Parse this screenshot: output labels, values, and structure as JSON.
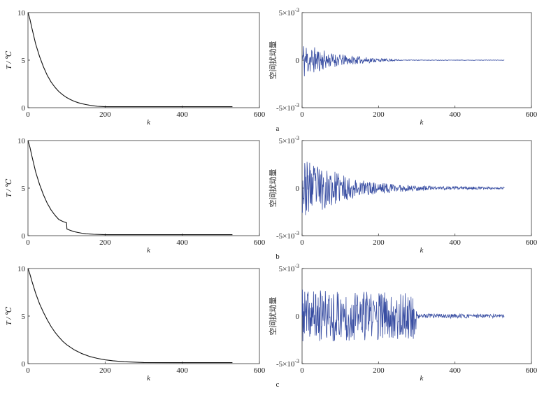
{
  "panel_labels": [
    "a",
    "b",
    "c"
  ],
  "chart_data": [
    {
      "id": "a-left",
      "type": "line",
      "xlabel": "k",
      "ylabel": "T / ℃",
      "xlim": [
        0,
        600
      ],
      "ylim": [
        0,
        10
      ],
      "xticks": [
        "0",
        "200",
        "400",
        "600"
      ],
      "yticks": [
        "0",
        "5",
        "10"
      ],
      "series": [
        {
          "color": "#111111",
          "values": [
            [
              0,
              10
            ],
            [
              5,
              9.3
            ],
            [
              10,
              8.4
            ],
            [
              20,
              6.7
            ],
            [
              30,
              5.4
            ],
            [
              40,
              4.3
            ],
            [
              50,
              3.4
            ],
            [
              60,
              2.7
            ],
            [
              70,
              2.15
            ],
            [
              80,
              1.7
            ],
            [
              90,
              1.35
            ],
            [
              100,
              1.07
            ],
            [
              110,
              0.85
            ],
            [
              120,
              0.67
            ],
            [
              130,
              0.53
            ],
            [
              140,
              0.42
            ],
            [
              150,
              0.33
            ],
            [
              160,
              0.26
            ],
            [
              170,
              0.2
            ],
            [
              180,
              0.15
            ],
            [
              200,
              0.1
            ],
            [
              250,
              0.1
            ],
            [
              300,
              0.1
            ],
            [
              400,
              0.1
            ],
            [
              530,
              0.1
            ]
          ]
        }
      ],
      "grid": false
    },
    {
      "id": "a-right",
      "type": "line",
      "xlabel": "k",
      "ylabel": "空间扰动量",
      "xlim": [
        0,
        600
      ],
      "ylim": [
        -0.005,
        0.005
      ],
      "xticks": [
        "0",
        "200",
        "400",
        "600"
      ],
      "yticks": [
        "-5×10⁻³",
        "0",
        "5×10⁻³"
      ],
      "series": [
        {
          "color": "#3a4fa3",
          "noise": {
            "segments": [
              [
                0,
                20,
                0.0022,
                0.0016
              ],
              [
                20,
                60,
                0.0016,
                0.001
              ],
              [
                60,
                120,
                0.0009,
                0.0005
              ],
              [
                120,
                200,
                0.0005,
                0.0002
              ],
              [
                200,
                260,
                0.0002,
                5e-05
              ],
              [
                260,
                530,
                3e-05,
                2e-05
              ]
            ],
            "seed": 11
          }
        }
      ],
      "grid": false
    },
    {
      "id": "b-left",
      "type": "line",
      "xlabel": "k",
      "ylabel": "T / ℃",
      "xlim": [
        0,
        600
      ],
      "ylim": [
        0,
        10
      ],
      "xticks": [
        "0",
        "200",
        "400",
        "600"
      ],
      "yticks": [
        "0",
        "5",
        "10"
      ],
      "series": [
        {
          "color": "#111111",
          "values": [
            [
              0,
              10
            ],
            [
              5,
              9.3
            ],
            [
              10,
              8.4
            ],
            [
              20,
              6.7
            ],
            [
              30,
              5.4
            ],
            [
              40,
              4.3
            ],
            [
              50,
              3.4
            ],
            [
              60,
              2.7
            ],
            [
              70,
              2.15
            ],
            [
              80,
              1.7
            ],
            [
              90,
              1.5
            ],
            [
              100,
              1.35
            ],
            [
              101,
              0.7
            ],
            [
              110,
              0.55
            ],
            [
              120,
              0.42
            ],
            [
              130,
              0.33
            ],
            [
              140,
              0.26
            ],
            [
              150,
              0.2
            ],
            [
              170,
              0.15
            ],
            [
              200,
              0.1
            ],
            [
              300,
              0.1
            ],
            [
              400,
              0.1
            ],
            [
              530,
              0.1
            ]
          ]
        }
      ],
      "grid": false
    },
    {
      "id": "b-right",
      "type": "line",
      "xlabel": "k",
      "ylabel": "空间扰动量",
      "xlim": [
        0,
        600
      ],
      "ylim": [
        -0.005,
        0.005
      ],
      "xticks": [
        "0",
        "200",
        "400",
        "600"
      ],
      "yticks": [
        "-5×10⁻³",
        "0",
        "5×10⁻³"
      ],
      "series": [
        {
          "color": "#3a4fa3",
          "noise": {
            "segments": [
              [
                0,
                40,
                0.003,
                0.0025
              ],
              [
                40,
                100,
                0.0025,
                0.0015
              ],
              [
                100,
                160,
                0.0015,
                0.0008
              ],
              [
                160,
                250,
                0.0008,
                0.0004
              ],
              [
                250,
                350,
                0.0004,
                0.0002
              ],
              [
                350,
                530,
                0.0002,
                0.0001
              ]
            ],
            "seed": 23
          }
        }
      ],
      "grid": false
    },
    {
      "id": "c-left",
      "type": "line",
      "xlabel": "k",
      "ylabel": "T / ℃",
      "xlim": [
        0,
        600
      ],
      "ylim": [
        0,
        10
      ],
      "xticks": [
        "0",
        "200",
        "400",
        "600"
      ],
      "yticks": [
        "0",
        "5",
        "10"
      ],
      "series": [
        {
          "color": "#111111",
          "values": [
            [
              0,
              10
            ],
            [
              5,
              9.4
            ],
            [
              10,
              8.7
            ],
            [
              20,
              7.4
            ],
            [
              30,
              6.3
            ],
            [
              40,
              5.4
            ],
            [
              50,
              4.6
            ],
            [
              60,
              3.9
            ],
            [
              70,
              3.3
            ],
            [
              80,
              2.8
            ],
            [
              90,
              2.35
            ],
            [
              100,
              2.0
            ],
            [
              120,
              1.45
            ],
            [
              140,
              1.05
            ],
            [
              160,
              0.75
            ],
            [
              180,
              0.55
            ],
            [
              200,
              0.4
            ],
            [
              220,
              0.3
            ],
            [
              250,
              0.2
            ],
            [
              300,
              0.12
            ],
            [
              400,
              0.1
            ],
            [
              530,
              0.1
            ]
          ]
        }
      ],
      "grid": false
    },
    {
      "id": "c-right",
      "type": "line",
      "xlabel": "k",
      "ylabel": "空间扰动量",
      "xlim": [
        0,
        600
      ],
      "ylim": [
        -0.005,
        0.005
      ],
      "xticks": [
        "0",
        "200",
        "400",
        "600"
      ],
      "yticks": [
        "-5×10⁻³",
        "0",
        "5×10⁻³"
      ],
      "series": [
        {
          "color": "#3a4fa3",
          "noise": {
            "segments": [
              [
                0,
                300,
                0.0028,
                0.0024
              ],
              [
                300,
                530,
                0.00025,
                0.0002
              ]
            ],
            "seed": 37
          }
        }
      ],
      "grid": false
    }
  ]
}
